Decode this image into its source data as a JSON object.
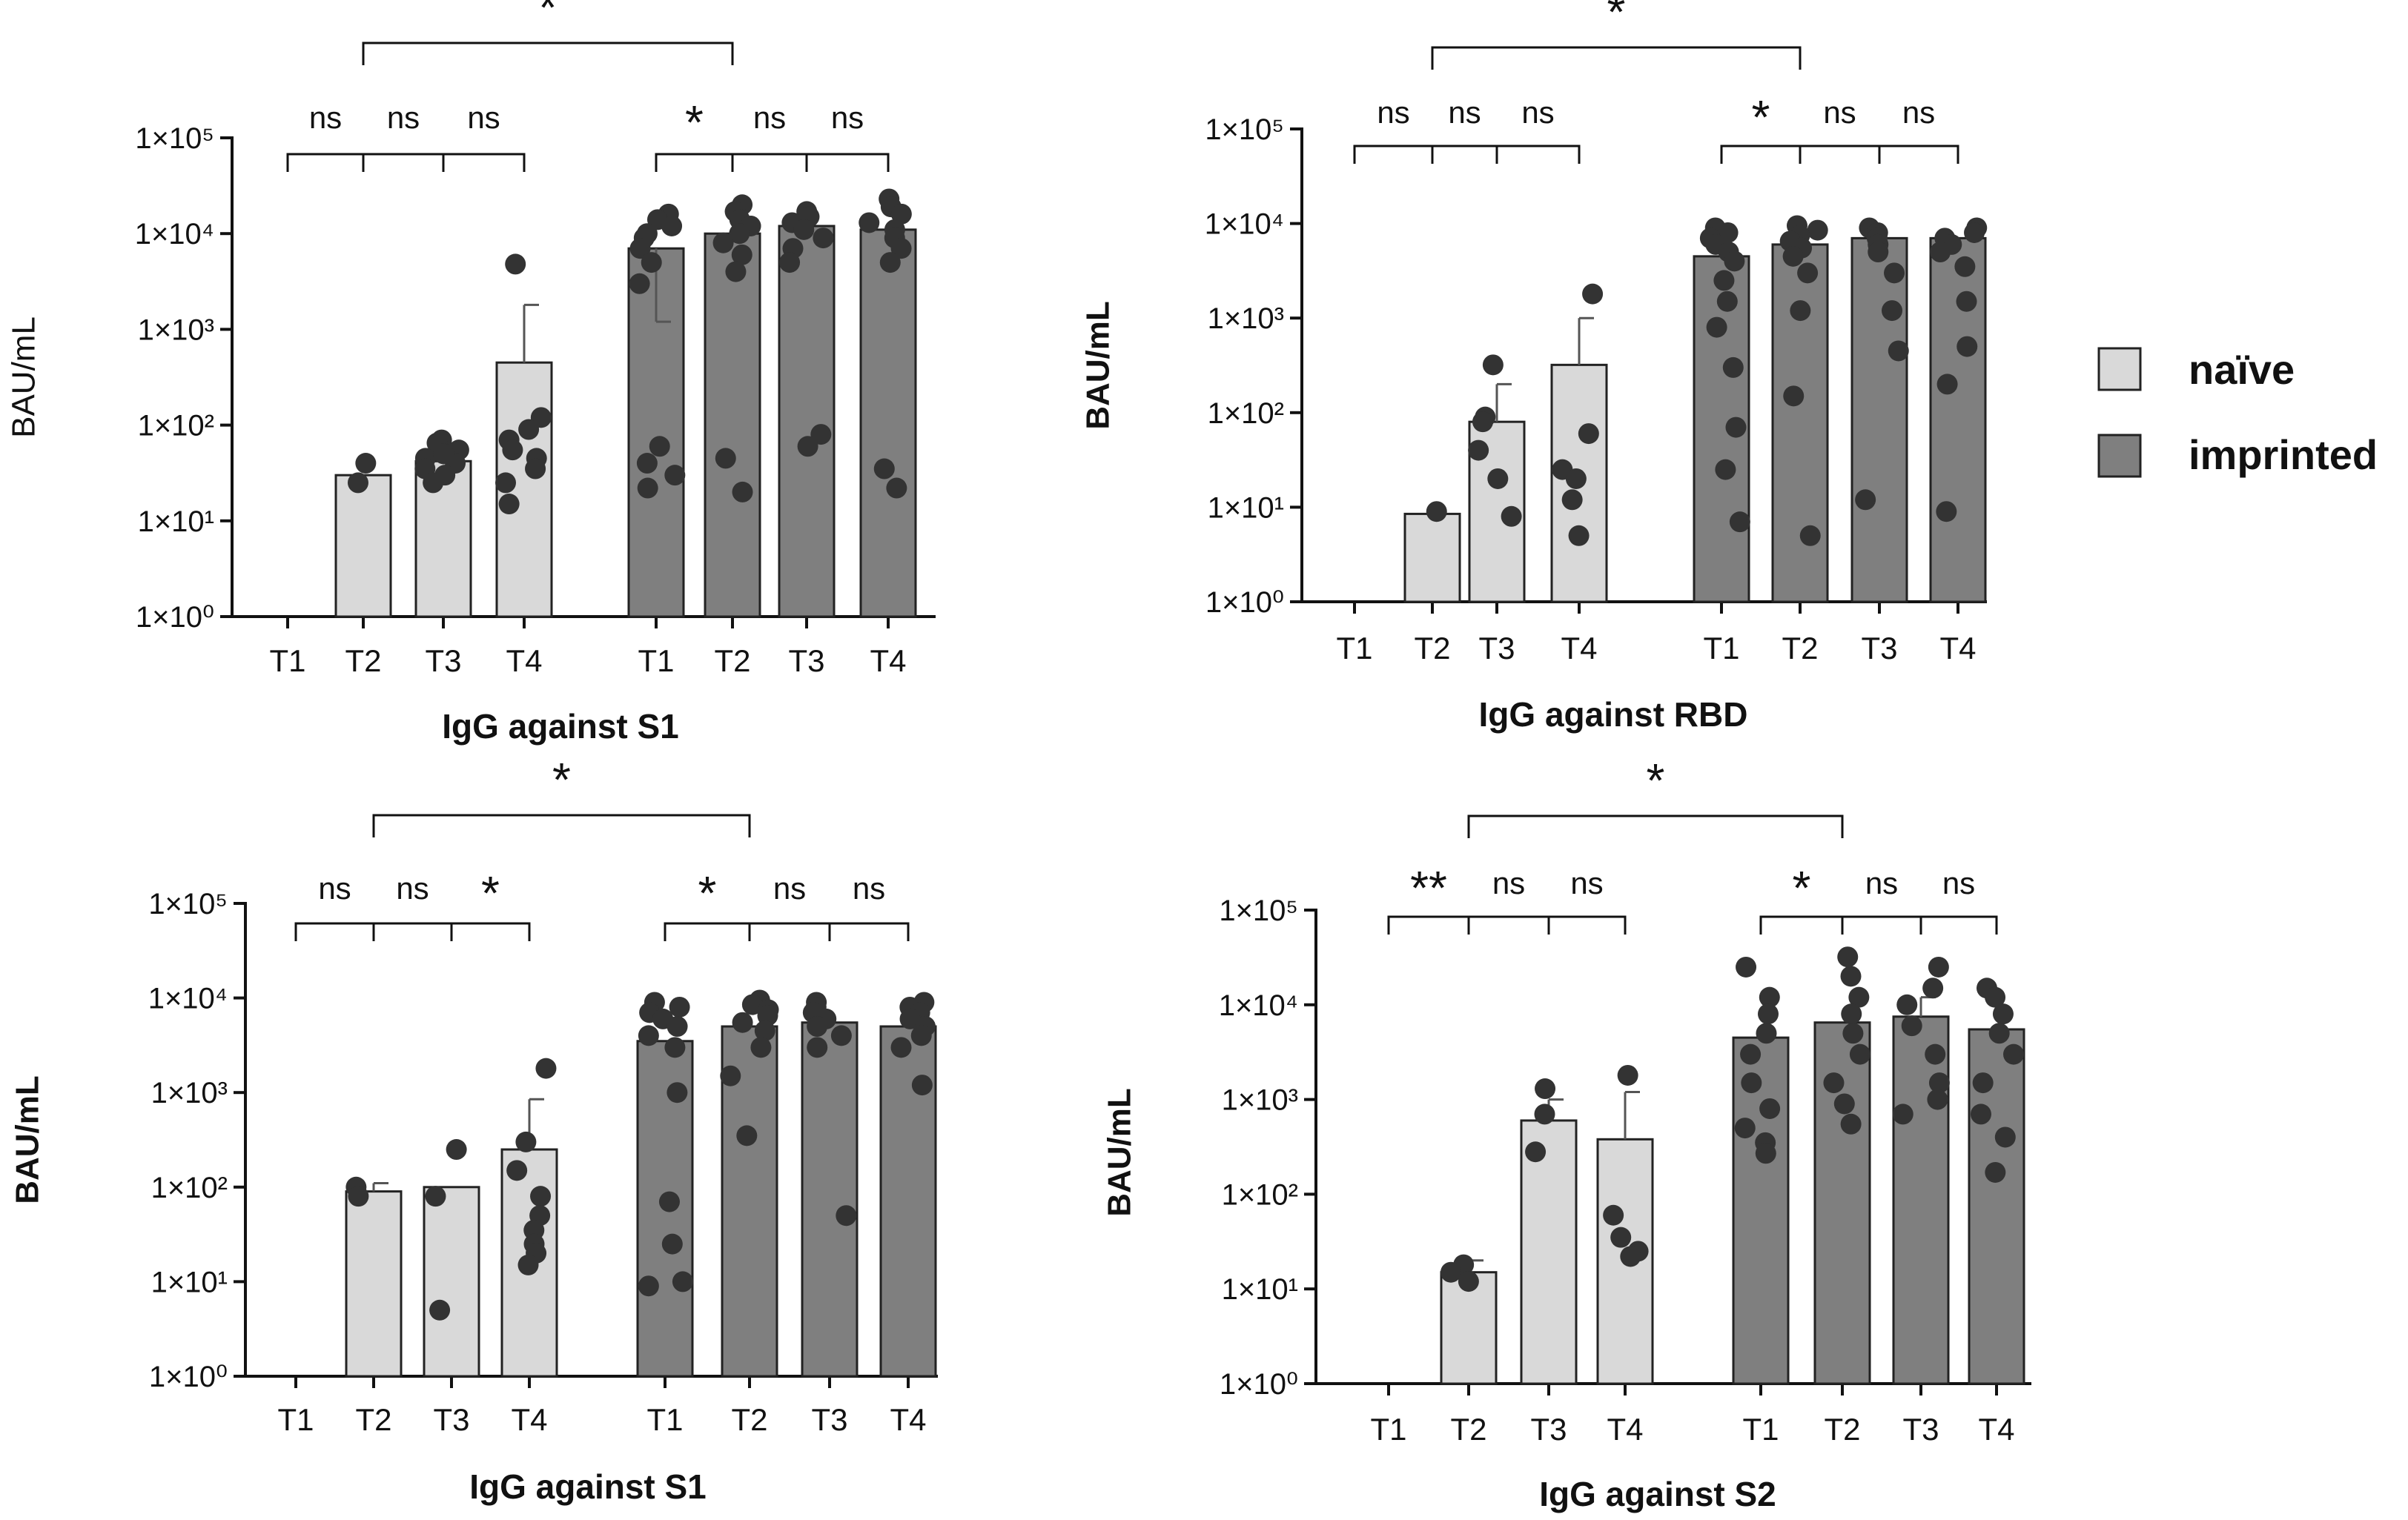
{
  "legend": {
    "items": [
      {
        "label": "naïve",
        "color": "#d9d9d9"
      },
      {
        "label": "imprinted",
        "color": "#7f7f7f"
      }
    ]
  },
  "colors": {
    "naive": "#d9d9d9",
    "imprinted": "#7f7f7f",
    "dot": "#333333",
    "line": "#111111"
  },
  "chart_data": [
    {
      "type": "bar",
      "title": "IgG against S1",
      "xlabel": "IgG against S1",
      "ylabel": "BAU/mL",
      "ylabel_bold": false,
      "yscale": "log",
      "ylim": [
        1,
        100000
      ],
      "ytick_labels": [
        "1×10⁰",
        "1×10¹",
        "1×10²",
        "1×10³",
        "1×10⁴",
        "1×10⁵"
      ],
      "categories": [
        "T1",
        "T2",
        "T3",
        "T4",
        "T1",
        "T2",
        "T3",
        "T4"
      ],
      "series": [
        {
          "name": "naïve",
          "bars": [
            {
              "label": "T1",
              "value": null,
              "err": null,
              "points": []
            },
            {
              "label": "T2",
              "value": 30,
              "err": null,
              "points": [
                40,
                25
              ]
            },
            {
              "label": "T3",
              "value": 42,
              "err": 60,
              "points": [
                70,
                65,
                55,
                45,
                40,
                35,
                30,
                25,
                50
              ]
            },
            {
              "label": "T4",
              "value": 450,
              "err": 1800,
              "points": [
                4800,
                120,
                90,
                70,
                55,
                45,
                35,
                25,
                15
              ]
            }
          ]
        },
        {
          "name": "imprinted",
          "bars": [
            {
              "label": "T1",
              "value": 7000,
              "err": 1200,
              "points": [
                16000,
                14000,
                12000,
                10000,
                9000,
                7000,
                5000,
                3000,
                60,
                40,
                30,
                22
              ]
            },
            {
              "label": "T2",
              "value": 10000,
              "err": null,
              "points": [
                20000,
                17000,
                14000,
                12000,
                10000,
                8000,
                6000,
                4000,
                45,
                20
              ]
            },
            {
              "label": "T3",
              "value": 12000,
              "err": null,
              "points": [
                17000,
                15000,
                13000,
                11000,
                9000,
                7000,
                5000,
                80,
                60
              ]
            },
            {
              "label": "T4",
              "value": 11000,
              "err": null,
              "points": [
                23000,
                19000,
                16000,
                13000,
                11000,
                9000,
                7000,
                5000,
                35,
                22
              ]
            }
          ]
        }
      ],
      "brackets": [
        {
          "from": 0,
          "to": 1,
          "label": "ns",
          "level": "low"
        },
        {
          "from": 1,
          "to": 2,
          "label": "ns",
          "level": "low"
        },
        {
          "from": 2,
          "to": 3,
          "label": "ns",
          "level": "low"
        },
        {
          "from": 4,
          "to": 5,
          "label": "*",
          "level": "low"
        },
        {
          "from": 5,
          "to": 6,
          "label": "ns",
          "level": "low"
        },
        {
          "from": 6,
          "to": 7,
          "label": "ns",
          "level": "low"
        },
        {
          "from": 1,
          "to": 5,
          "label": "*",
          "level": "high"
        }
      ]
    },
    {
      "type": "bar",
      "title": "IgG against RBD",
      "xlabel": "IgG against RBD",
      "ylabel": "BAU/mL",
      "ylabel_bold": true,
      "yscale": "log",
      "ylim": [
        1,
        100000
      ],
      "ytick_labels": [
        "1×10⁰",
        "1×10¹",
        "1×10²",
        "1×10³",
        "1×10⁴",
        "1×10⁵"
      ],
      "categories": [
        "T1",
        "T2",
        "T3",
        "T4",
        "T1",
        "T2",
        "T3",
        "T4"
      ],
      "series": [
        {
          "name": "naïve",
          "bars": [
            {
              "label": "T1",
              "value": null,
              "err": null,
              "points": []
            },
            {
              "label": "T2",
              "value": 8.5,
              "err": null,
              "points": [
                9
              ]
            },
            {
              "label": "T3",
              "value": 80,
              "err": 200,
              "points": [
                320,
                90,
                80,
                40,
                20,
                8
              ]
            },
            {
              "label": "T4",
              "value": 320,
              "err": 1000,
              "points": [
                1800,
                60,
                25,
                20,
                12,
                5
              ]
            }
          ]
        },
        {
          "name": "imprinted",
          "bars": [
            {
              "label": "T1",
              "value": 4500,
              "err": null,
              "points": [
                9000,
                8000,
                7000,
                6000,
                5000,
                4000,
                2500,
                1500,
                800,
                300,
                70,
                25,
                7
              ]
            },
            {
              "label": "T2",
              "value": 6000,
              "err": null,
              "points": [
                9500,
                8500,
                7500,
                6500,
                5500,
                4500,
                3000,
                1200,
                150,
                5
              ]
            },
            {
              "label": "T3",
              "value": 7000,
              "err": null,
              "points": [
                9000,
                8000,
                7000,
                6000,
                5000,
                3000,
                1200,
                450,
                12
              ]
            },
            {
              "label": "T4",
              "value": 7000,
              "err": null,
              "points": [
                9000,
                8000,
                7000,
                6000,
                5000,
                3500,
                1500,
                500,
                200,
                9
              ]
            }
          ]
        }
      ],
      "brackets": [
        {
          "from": 0,
          "to": 1,
          "label": "ns",
          "level": "low"
        },
        {
          "from": 1,
          "to": 2,
          "label": "ns",
          "level": "low"
        },
        {
          "from": 2,
          "to": 3,
          "label": "ns",
          "level": "low"
        },
        {
          "from": 4,
          "to": 5,
          "label": "*",
          "level": "low"
        },
        {
          "from": 5,
          "to": 6,
          "label": "ns",
          "level": "low"
        },
        {
          "from": 6,
          "to": 7,
          "label": "ns",
          "level": "low"
        },
        {
          "from": 1,
          "to": 5,
          "label": "*",
          "level": "high"
        }
      ]
    },
    {
      "type": "bar",
      "title": "IgG against S1",
      "xlabel": "IgG against S1",
      "ylabel": "BAU/mL",
      "ylabel_bold": true,
      "yscale": "log",
      "ylim": [
        1,
        100000
      ],
      "ytick_labels": [
        "1×10⁰",
        "1×10¹",
        "1×10²",
        "1×10³",
        "1×10⁴",
        "1×10⁵"
      ],
      "categories": [
        "T1",
        "T2",
        "T3",
        "T4",
        "T1",
        "T2",
        "T3",
        "T4"
      ],
      "series": [
        {
          "name": "naïve",
          "bars": [
            {
              "label": "T1",
              "value": null,
              "err": null,
              "points": []
            },
            {
              "label": "T2",
              "value": 90,
              "err": 110,
              "points": [
                100,
                80
              ]
            },
            {
              "label": "T3",
              "value": 100,
              "err": null,
              "points": [
                250,
                80,
                5
              ]
            },
            {
              "label": "T4",
              "value": 250,
              "err": 850,
              "points": [
                1800,
                300,
                150,
                80,
                50,
                35,
                25,
                20,
                15
              ]
            }
          ]
        },
        {
          "name": "imprinted",
          "bars": [
            {
              "label": "T1",
              "value": 3500,
              "err": null,
              "points": [
                9000,
                8000,
                7000,
                6000,
                5000,
                4000,
                3000,
                1000,
                70,
                25,
                10,
                9
              ]
            },
            {
              "label": "T2",
              "value": 5000,
              "err": null,
              "points": [
                9500,
                8500,
                7500,
                6500,
                5500,
                4500,
                3000,
                1500,
                350
              ]
            },
            {
              "label": "T3",
              "value": 5500,
              "err": null,
              "points": [
                9000,
                8000,
                7000,
                6000,
                5000,
                4000,
                3000,
                50
              ]
            },
            {
              "label": "T4",
              "value": 5000,
              "err": null,
              "points": [
                9000,
                8000,
                7000,
                6000,
                5000,
                4000,
                3000,
                1200
              ]
            }
          ]
        }
      ],
      "brackets": [
        {
          "from": 0,
          "to": 1,
          "label": "ns",
          "level": "low"
        },
        {
          "from": 1,
          "to": 2,
          "label": "ns",
          "level": "low"
        },
        {
          "from": 2,
          "to": 3,
          "label": "*",
          "level": "low"
        },
        {
          "from": 4,
          "to": 5,
          "label": "*",
          "level": "low"
        },
        {
          "from": 5,
          "to": 6,
          "label": "ns",
          "level": "low"
        },
        {
          "from": 6,
          "to": 7,
          "label": "ns",
          "level": "low"
        },
        {
          "from": 1,
          "to": 5,
          "label": "*",
          "level": "high"
        }
      ]
    },
    {
      "type": "bar",
      "title": "IgG against S2",
      "xlabel": "IgG against S2",
      "ylabel": "BAU/mL",
      "ylabel_bold": true,
      "yscale": "log",
      "ylim": [
        1,
        100000
      ],
      "ytick_labels": [
        "1×10⁰",
        "1×10¹",
        "1×10²",
        "1×10³",
        "1×10⁴",
        "1×10⁵"
      ],
      "categories": [
        "T1",
        "T2",
        "T3",
        "T4",
        "T1",
        "T2",
        "T3",
        "T4"
      ],
      "series": [
        {
          "name": "naïve",
          "bars": [
            {
              "label": "T1",
              "value": null,
              "err": null,
              "points": []
            },
            {
              "label": "T2",
              "value": 15,
              "err": 20,
              "points": [
                18,
                15,
                12
              ]
            },
            {
              "label": "T3",
              "value": 600,
              "err": 1000,
              "points": [
                1300,
                700,
                280
              ]
            },
            {
              "label": "T4",
              "value": 380,
              "err": 1200,
              "points": [
                1800,
                60,
                35,
                25,
                22
              ]
            }
          ]
        },
        {
          "name": "imprinted",
          "bars": [
            {
              "label": "T1",
              "value": 4500,
              "err": null,
              "points": [
                25000,
                12000,
                8000,
                5000,
                3000,
                1500,
                800,
                500,
                350,
                270
              ]
            },
            {
              "label": "T2",
              "value": 6500,
              "err": null,
              "points": [
                32000,
                20000,
                12000,
                8000,
                5000,
                3000,
                1500,
                900,
                550
              ]
            },
            {
              "label": "T3",
              "value": 7500,
              "err": 12000,
              "points": [
                25000,
                15000,
                10000,
                6000,
                3000,
                1500,
                1000,
                700
              ]
            },
            {
              "label": "T4",
              "value": 5500,
              "err": null,
              "points": [
                15000,
                12000,
                8000,
                5000,
                3000,
                1500,
                700,
                400,
                170
              ]
            }
          ]
        }
      ],
      "brackets": [
        {
          "from": 0,
          "to": 1,
          "label": "**",
          "level": "low"
        },
        {
          "from": 1,
          "to": 2,
          "label": "ns",
          "level": "low"
        },
        {
          "from": 2,
          "to": 3,
          "label": "ns",
          "level": "low"
        },
        {
          "from": 4,
          "to": 5,
          "label": "*",
          "level": "low"
        },
        {
          "from": 5,
          "to": 6,
          "label": "ns",
          "level": "low"
        },
        {
          "from": 6,
          "to": 7,
          "label": "ns",
          "level": "low"
        },
        {
          "from": 1,
          "to": 5,
          "label": "*",
          "level": "high"
        }
      ]
    }
  ]
}
